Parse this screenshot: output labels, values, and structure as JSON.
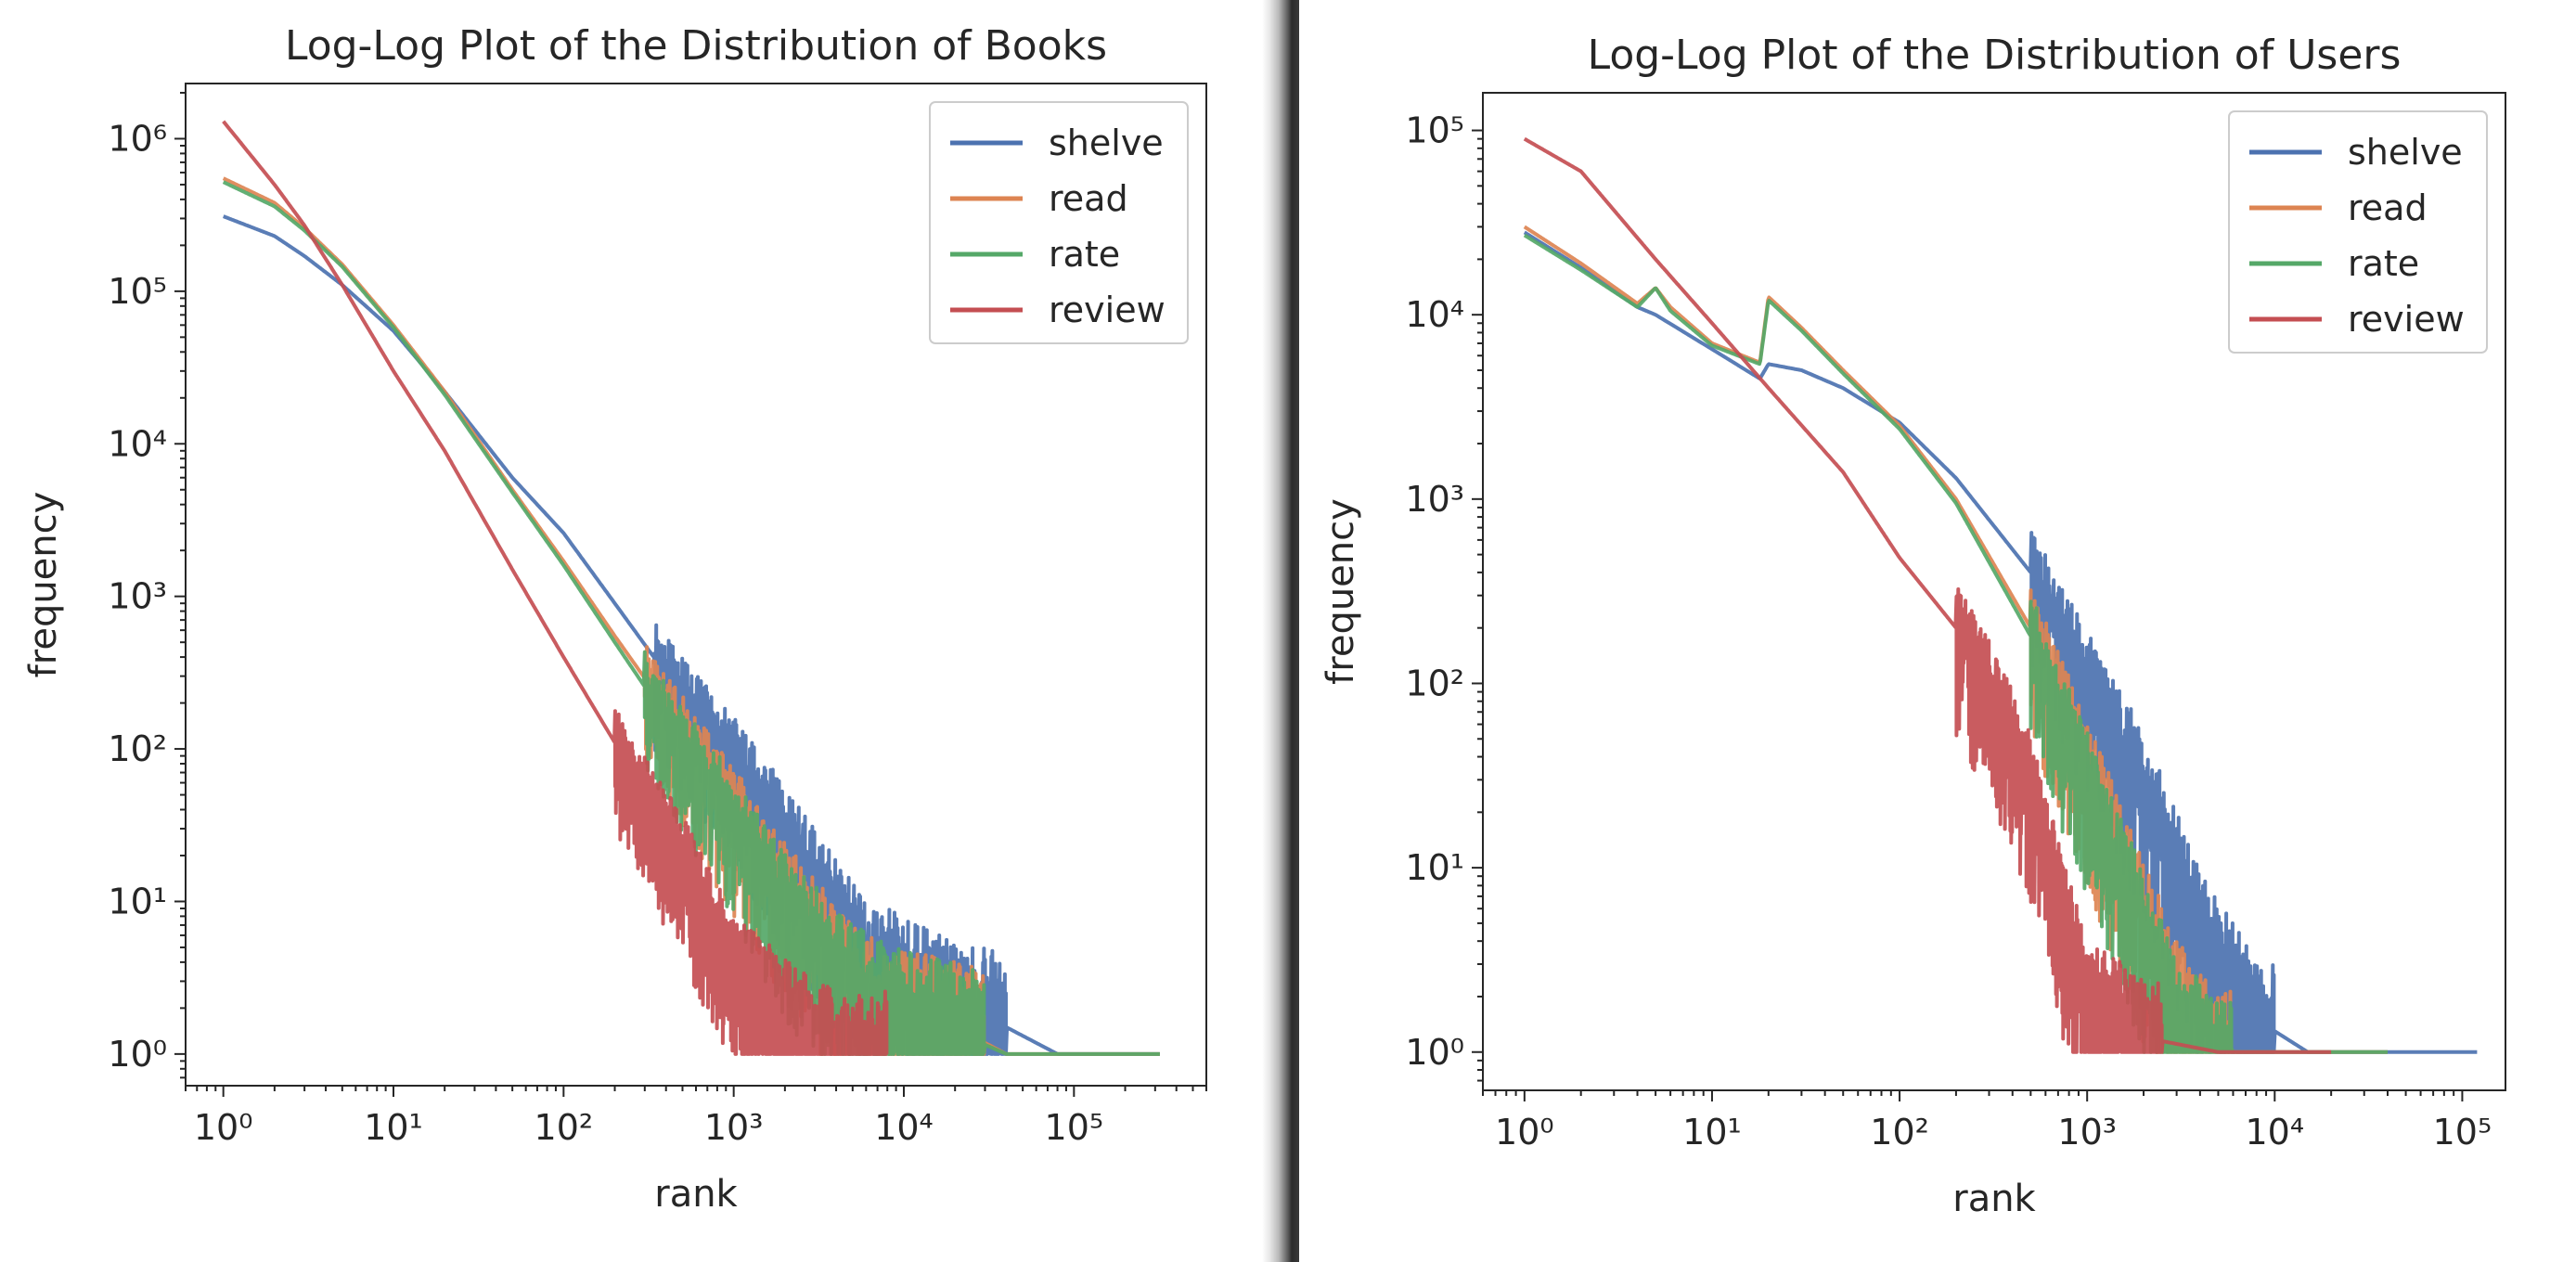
{
  "chart_data": [
    {
      "type": "line",
      "title": "Log-Log Plot of the Distribution of Books",
      "xlabel": "rank",
      "ylabel": "frequency",
      "xscale": "log",
      "yscale": "log",
      "xlim": [
        0.6,
        600000
      ],
      "ylim": [
        0.62,
        2300000
      ],
      "xticks": [
        1,
        10,
        100,
        1000,
        10000,
        100000
      ],
      "yticks": [
        1,
        10,
        100,
        1000,
        10000,
        100000,
        1000000
      ],
      "grid": false,
      "legend": "top-right",
      "series": [
        {
          "name": "shelve",
          "color": "#4c72b0",
          "points": [
            [
              1,
              310000
            ],
            [
              2,
              230000
            ],
            [
              3,
              170000
            ],
            [
              5,
              110000
            ],
            [
              10,
              55000
            ],
            [
              20,
              22000
            ],
            [
              50,
              6000
            ],
            [
              100,
              2600
            ],
            [
              200,
              900
            ],
            [
              500,
              220
            ],
            [
              1000,
              85
            ],
            [
              2000,
              28
            ],
            [
              5000,
              6
            ],
            [
              10000,
              3
            ],
            [
              20000,
              2
            ],
            [
              40000,
              1.5
            ],
            [
              80000,
              1
            ],
            [
              320000,
              1
            ]
          ],
          "noise_from": 300,
          "noise_to": 40000,
          "noise_floor": 1
        },
        {
          "name": "read",
          "color": "#dd8452",
          "points": [
            [
              1,
              550000
            ],
            [
              2,
              380000
            ],
            [
              3,
              260000
            ],
            [
              5,
              150000
            ],
            [
              10,
              60000
            ],
            [
              20,
              22000
            ],
            [
              50,
              5000
            ],
            [
              100,
              1700
            ],
            [
              200,
              550
            ],
            [
              500,
              130
            ],
            [
              1000,
              40
            ],
            [
              2000,
              12
            ],
            [
              5000,
              3
            ],
            [
              10000,
              2
            ],
            [
              20000,
              1.5
            ],
            [
              40000,
              1
            ],
            [
              320000,
              1
            ]
          ],
          "noise_from": 300,
          "noise_to": 30000,
          "noise_floor": 1
        },
        {
          "name": "rate",
          "color": "#55a868",
          "points": [
            [
              1,
              520000
            ],
            [
              2,
              360000
            ],
            [
              3,
              250000
            ],
            [
              5,
              145000
            ],
            [
              10,
              58000
            ],
            [
              20,
              21000
            ],
            [
              50,
              4800
            ],
            [
              100,
              1600
            ],
            [
              200,
              500
            ],
            [
              500,
              110
            ],
            [
              1000,
              35
            ],
            [
              2000,
              10
            ],
            [
              5000,
              3
            ],
            [
              10000,
              2
            ],
            [
              20000,
              1.4
            ],
            [
              40000,
              1
            ],
            [
              320000,
              1
            ]
          ],
          "noise_from": 300,
          "noise_to": 30000,
          "noise_floor": 1
        },
        {
          "name": "review",
          "color": "#c44e52",
          "points": [
            [
              1,
              1300000
            ],
            [
              2,
              500000
            ],
            [
              3,
              270000
            ],
            [
              5,
              110000
            ],
            [
              10,
              30000
            ],
            [
              20,
              9000
            ],
            [
              50,
              1500
            ],
            [
              100,
              400
            ],
            [
              200,
              110
            ],
            [
              300,
              50
            ],
            [
              500,
              20
            ],
            [
              1000,
              4
            ],
            [
              2000,
              2
            ],
            [
              3000,
              1.3
            ],
            [
              5000,
              1
            ],
            [
              8000,
              1
            ]
          ],
          "noise_from": 200,
          "noise_to": 8000,
          "noise_floor": 1
        }
      ]
    },
    {
      "type": "line",
      "title": "Log-Log Plot of the Distribution of Users",
      "xlabel": "rank",
      "ylabel": "frequency",
      "xscale": "log",
      "yscale": "log",
      "xlim": [
        0.6,
        170000
      ],
      "ylim": [
        0.62,
        160000
      ],
      "xticks": [
        1,
        10,
        100,
        1000,
        10000,
        100000
      ],
      "yticks": [
        1,
        10,
        100,
        1000,
        10000,
        100000
      ],
      "grid": false,
      "legend": "top-right",
      "series": [
        {
          "name": "shelve",
          "color": "#4c72b0",
          "points": [
            [
              1,
              28000
            ],
            [
              2,
              18000
            ],
            [
              4,
              11000
            ],
            [
              5,
              10000
            ],
            [
              10,
              6500
            ],
            [
              18,
              4500
            ],
            [
              20,
              5400
            ],
            [
              30,
              5000
            ],
            [
              50,
              4000
            ],
            [
              100,
              2600
            ],
            [
              200,
              1300
            ],
            [
              500,
              400
            ],
            [
              1000,
              110
            ],
            [
              2000,
              28
            ],
            [
              3000,
              10
            ],
            [
              5000,
              3
            ],
            [
              8000,
              1.5
            ],
            [
              15000,
              1
            ],
            [
              30000,
              1
            ],
            [
              120000,
              1
            ]
          ],
          "noise_from": 500,
          "noise_to": 10000,
          "noise_floor": 1
        },
        {
          "name": "read",
          "color": "#dd8452",
          "points": [
            [
              1,
              30000
            ],
            [
              2,
              19000
            ],
            [
              4,
              11500
            ],
            [
              5,
              14000
            ],
            [
              6,
              11000
            ],
            [
              10,
              7000
            ],
            [
              18,
              5500
            ],
            [
              20,
              12500
            ],
            [
              30,
              8500
            ],
            [
              50,
              5000
            ],
            [
              100,
              2500
            ],
            [
              200,
              1000
            ],
            [
              500,
              200
            ],
            [
              1000,
              35
            ],
            [
              2000,
              6
            ],
            [
              3000,
              2
            ],
            [
              5000,
              1
            ],
            [
              40000,
              1
            ]
          ],
          "noise_from": 500,
          "noise_to": 6000,
          "noise_floor": 1
        },
        {
          "name": "rate",
          "color": "#55a868",
          "points": [
            [
              1,
              27000
            ],
            [
              2,
              17500
            ],
            [
              4,
              11000
            ],
            [
              5,
              14000
            ],
            [
              6,
              10500
            ],
            [
              10,
              6800
            ],
            [
              18,
              5400
            ],
            [
              20,
              12000
            ],
            [
              30,
              8200
            ],
            [
              50,
              4800
            ],
            [
              100,
              2400
            ],
            [
              200,
              950
            ],
            [
              500,
              180
            ],
            [
              1000,
              30
            ],
            [
              2000,
              5
            ],
            [
              3000,
              1.5
            ],
            [
              5000,
              1
            ],
            [
              40000,
              1
            ]
          ],
          "noise_from": 500,
          "noise_to": 6000,
          "noise_floor": 1
        },
        {
          "name": "review",
          "color": "#c44e52",
          "points": [
            [
              1,
              90000
            ],
            [
              2,
              60000
            ],
            [
              5,
              20000
            ],
            [
              10,
              9000
            ],
            [
              20,
              4000
            ],
            [
              50,
              1400
            ],
            [
              100,
              480
            ],
            [
              200,
              200
            ],
            [
              300,
              100
            ],
            [
              500,
              30
            ],
            [
              700,
              8
            ],
            [
              1000,
              2
            ],
            [
              2000,
              1.2
            ],
            [
              5000,
              1
            ],
            [
              20000,
              1
            ]
          ],
          "noise_from": 200,
          "noise_to": 2500,
          "noise_floor": 1
        }
      ]
    }
  ]
}
